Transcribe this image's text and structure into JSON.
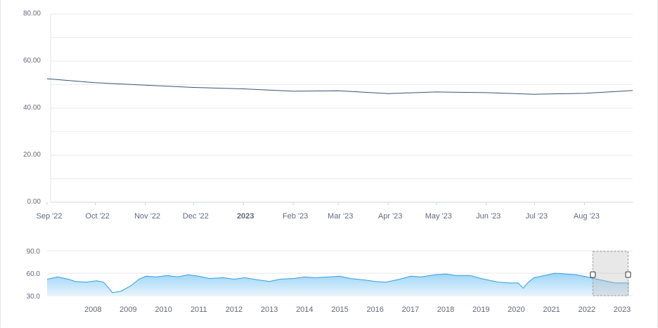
{
  "chart_data": [
    {
      "type": "line",
      "y_ticks": [
        "80.00",
        "60.00",
        "40.00",
        "20.00",
        "0.00"
      ],
      "ylim": [
        0,
        80
      ],
      "x_tick_labels": [
        "Sep '22",
        "Oct '22",
        "Nov '22",
        "Dec '22",
        "2023",
        "Feb '23",
        "Mar '23",
        "Apr '23",
        "May '23",
        "Jun '23",
        "Jul '23",
        "Aug '23"
      ],
      "x_tick_bold": [
        false,
        false,
        false,
        false,
        true,
        false,
        false,
        false,
        false,
        false,
        false,
        false
      ],
      "xlim": [
        "2022-09-01",
        "2023-08-31"
      ],
      "series": [
        {
          "color": "#3b5272",
          "x": [
            "2022-09-01",
            "2022-10-01",
            "2022-11-01",
            "2022-12-01",
            "2023-01-01",
            "2023-02-01",
            "2023-03-01",
            "2023-04-01",
            "2023-05-01",
            "2023-06-01",
            "2023-07-01",
            "2023-08-01",
            "2023-08-31"
          ],
          "y": [
            52.5,
            50.8,
            49.8,
            48.8,
            48.2,
            47.2,
            47.4,
            46.2,
            46.9,
            46.6,
            45.9,
            46.3,
            47.5
          ]
        }
      ],
      "grid": true
    },
    {
      "type": "area",
      "role": "navigator",
      "y_ticks": [
        "90.0",
        "60.0",
        "30.0"
      ],
      "ylim": [
        30,
        90
      ],
      "x_tick_labels": [
        "2008",
        "2009",
        "2010",
        "2011",
        "2012",
        "2013",
        "2014",
        "2015",
        "2016",
        "2017",
        "2018",
        "2019",
        "2020",
        "2021",
        "2022",
        "2023"
      ],
      "series": [
        {
          "color": "#2f9ee4",
          "fill": "#bfe3fa",
          "x": [
            2007.2,
            2007.5,
            2007.8,
            2008.0,
            2008.3,
            2008.6,
            2008.8,
            2008.95,
            2009.05,
            2009.3,
            2009.6,
            2009.8,
            2010.0,
            2010.3,
            2010.6,
            2010.9,
            2011.2,
            2011.5,
            2011.8,
            2012.2,
            2012.5,
            2012.8,
            2013.2,
            2013.5,
            2013.8,
            2014.2,
            2014.5,
            2014.8,
            2015.2,
            2015.5,
            2015.8,
            2016.2,
            2016.5,
            2016.8,
            2017.2,
            2017.5,
            2017.8,
            2018.2,
            2018.5,
            2018.8,
            2019.2,
            2019.5,
            2019.8,
            2020.0,
            2020.3,
            2020.55,
            2020.7,
            2020.8,
            2021.0,
            2021.3,
            2021.6,
            2021.9,
            2022.2,
            2022.5,
            2022.8,
            2023.0,
            2023.3,
            2023.7
          ],
          "y": [
            52,
            55,
            52,
            49,
            48,
            50,
            48,
            40,
            34,
            36,
            44,
            52,
            56,
            55,
            57,
            55,
            58,
            56,
            53,
            54,
            52,
            54,
            51,
            49,
            52,
            53,
            55,
            54,
            55,
            56,
            53,
            51,
            49,
            48,
            52,
            56,
            55,
            58,
            59,
            57,
            57,
            53,
            50,
            48,
            47,
            47,
            40,
            46,
            54,
            57,
            60,
            59,
            58,
            55,
            52,
            50,
            47,
            47
          ]
        }
      ],
      "selection_range": [
        2022.67,
        2023.67
      ],
      "grid": true
    }
  ]
}
